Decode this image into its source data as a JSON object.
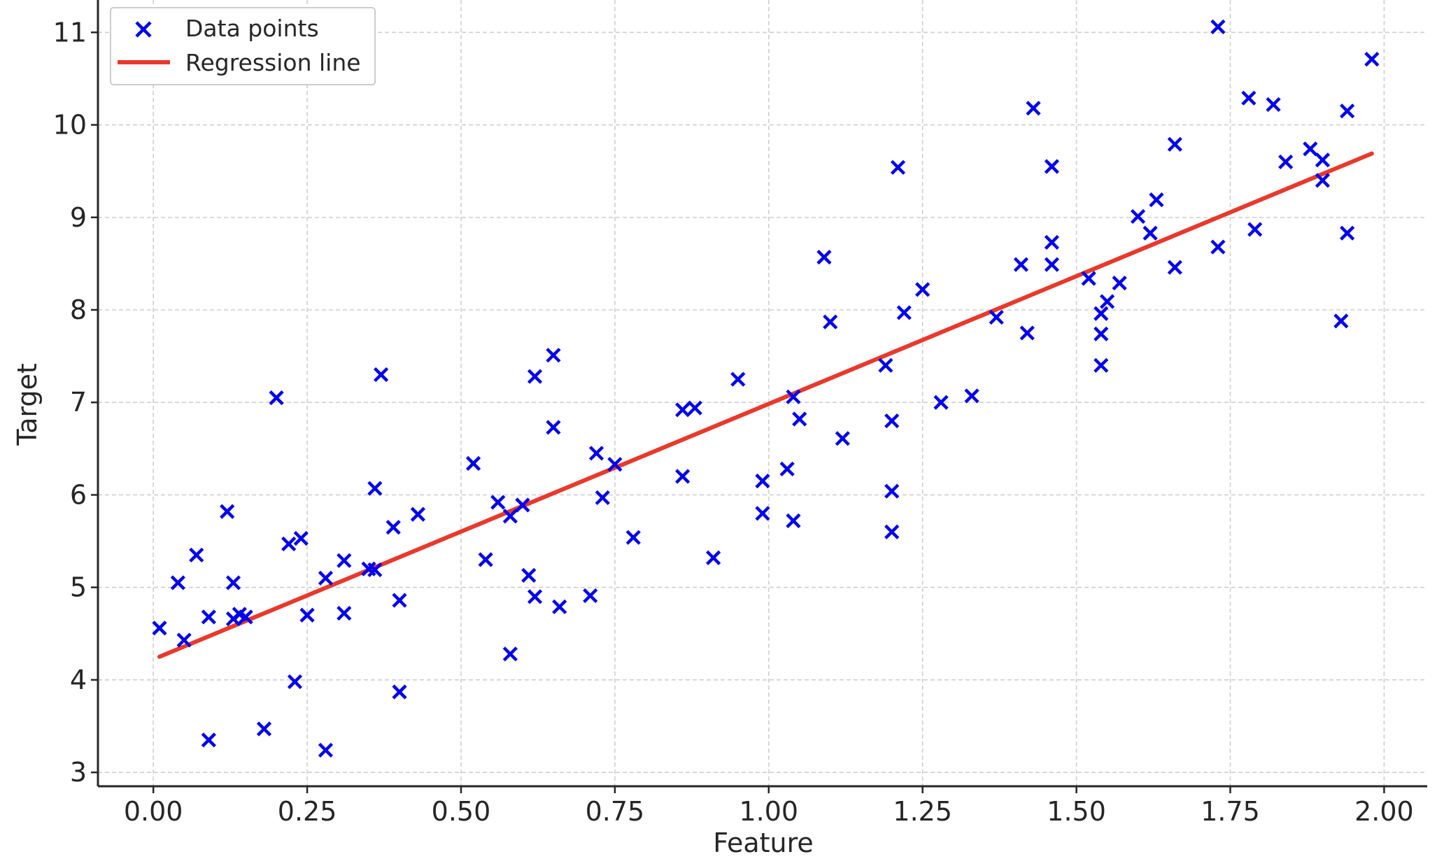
{
  "chart_data": {
    "type": "scatter",
    "xlabel": "Feature",
    "ylabel": "Target",
    "xlim": [
      -0.09,
      2.07
    ],
    "ylim": [
      2.85,
      11.35
    ],
    "xticks": [
      0.0,
      0.25,
      0.5,
      0.75,
      1.0,
      1.25,
      1.5,
      1.75,
      2.0
    ],
    "xtick_labels": [
      "0.00",
      "0.25",
      "0.50",
      "0.75",
      "1.00",
      "1.25",
      "1.50",
      "1.75",
      "2.00"
    ],
    "yticks": [
      3,
      4,
      5,
      6,
      7,
      8,
      9,
      10,
      11
    ],
    "ytick_labels": [
      "3",
      "4",
      "5",
      "6",
      "7",
      "8",
      "9",
      "10",
      "11"
    ],
    "grid": true,
    "legend_position": "top-left",
    "series": [
      {
        "name": "Data points",
        "kind": "scatter",
        "marker": "x",
        "color": "#0000ee",
        "points": [
          [
            0.01,
            4.56
          ],
          [
            0.04,
            5.05
          ],
          [
            0.05,
            4.43
          ],
          [
            0.07,
            5.35
          ],
          [
            0.09,
            4.68
          ],
          [
            0.09,
            3.35
          ],
          [
            0.12,
            5.82
          ],
          [
            0.13,
            5.05
          ],
          [
            0.13,
            4.66
          ],
          [
            0.14,
            4.71
          ],
          [
            0.15,
            4.68
          ],
          [
            0.18,
            3.47
          ],
          [
            0.2,
            7.05
          ],
          [
            0.22,
            5.47
          ],
          [
            0.23,
            3.98
          ],
          [
            0.24,
            5.53
          ],
          [
            0.25,
            4.7
          ],
          [
            0.28,
            5.1
          ],
          [
            0.28,
            3.24
          ],
          [
            0.31,
            5.29
          ],
          [
            0.31,
            4.72
          ],
          [
            0.35,
            5.2
          ],
          [
            0.36,
            5.19
          ],
          [
            0.36,
            6.07
          ],
          [
            0.37,
            7.3
          ],
          [
            0.39,
            5.65
          ],
          [
            0.4,
            4.86
          ],
          [
            0.4,
            3.87
          ],
          [
            0.43,
            5.79
          ],
          [
            0.52,
            6.34
          ],
          [
            0.54,
            5.3
          ],
          [
            0.56,
            5.92
          ],
          [
            0.58,
            5.77
          ],
          [
            0.58,
            4.28
          ],
          [
            0.6,
            5.89
          ],
          [
            0.61,
            5.13
          ],
          [
            0.62,
            4.9
          ],
          [
            0.62,
            7.28
          ],
          [
            0.65,
            7.51
          ],
          [
            0.65,
            6.73
          ],
          [
            0.66,
            4.79
          ],
          [
            0.71,
            4.91
          ],
          [
            0.72,
            6.45
          ],
          [
            0.73,
            5.97
          ],
          [
            0.75,
            6.33
          ],
          [
            0.78,
            5.54
          ],
          [
            0.86,
            6.92
          ],
          [
            0.86,
            6.2
          ],
          [
            0.88,
            6.94
          ],
          [
            0.91,
            5.32
          ],
          [
            0.95,
            7.25
          ],
          [
            0.99,
            6.15
          ],
          [
            0.99,
            5.8
          ],
          [
            1.03,
            6.28
          ],
          [
            1.04,
            7.06
          ],
          [
            1.04,
            5.72
          ],
          [
            1.05,
            6.82
          ],
          [
            1.09,
            8.57
          ],
          [
            1.1,
            7.87
          ],
          [
            1.12,
            6.61
          ],
          [
            1.19,
            7.4
          ],
          [
            1.2,
            6.04
          ],
          [
            1.2,
            5.6
          ],
          [
            1.2,
            6.8
          ],
          [
            1.21,
            9.54
          ],
          [
            1.22,
            7.97
          ],
          [
            1.25,
            8.22
          ],
          [
            1.28,
            7.0
          ],
          [
            1.33,
            7.07
          ],
          [
            1.37,
            7.92
          ],
          [
            1.41,
            8.49
          ],
          [
            1.42,
            7.75
          ],
          [
            1.43,
            10.18
          ],
          [
            1.46,
            9.55
          ],
          [
            1.46,
            8.73
          ],
          [
            1.46,
            8.49
          ],
          [
            1.52,
            8.34
          ],
          [
            1.54,
            7.96
          ],
          [
            1.54,
            7.74
          ],
          [
            1.54,
            7.4
          ],
          [
            1.55,
            8.09
          ],
          [
            1.57,
            8.29
          ],
          [
            1.6,
            9.01
          ],
          [
            1.62,
            8.83
          ],
          [
            1.63,
            9.19
          ],
          [
            1.66,
            9.79
          ],
          [
            1.66,
            8.46
          ],
          [
            1.73,
            11.06
          ],
          [
            1.73,
            8.68
          ],
          [
            1.78,
            10.29
          ],
          [
            1.79,
            8.87
          ],
          [
            1.82,
            10.22
          ],
          [
            1.84,
            9.6
          ],
          [
            1.88,
            9.74
          ],
          [
            1.9,
            9.62
          ],
          [
            1.9,
            9.4
          ],
          [
            1.93,
            7.88
          ],
          [
            1.94,
            10.15
          ],
          [
            1.94,
            8.83
          ],
          [
            1.98,
            10.71
          ]
        ]
      },
      {
        "name": "Regression line",
        "kind": "line",
        "color": "#e8392c",
        "points": [
          [
            0.01,
            4.25
          ],
          [
            1.98,
            9.69
          ]
        ]
      }
    ]
  }
}
